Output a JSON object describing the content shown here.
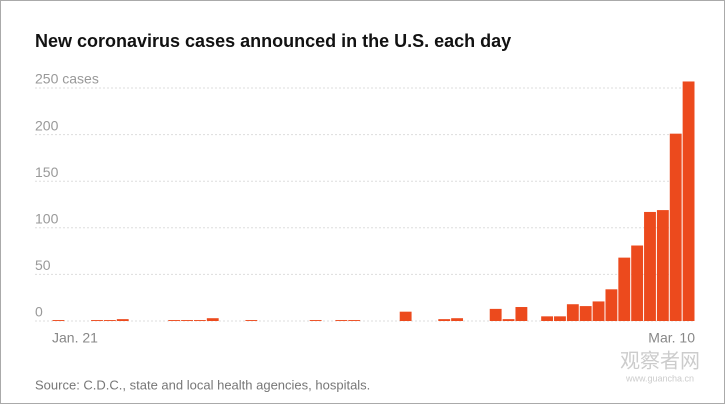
{
  "chart_data": {
    "type": "bar",
    "title": "New coronavirus cases announced in the U.S. each day",
    "source": "Source: C.D.C., state and local health agencies, hospitals.",
    "watermark": "观察者网",
    "watermark_url": "www.guancha.cn",
    "categories": [
      "Jan. 21",
      null,
      null,
      null,
      null,
      null,
      null,
      null,
      null,
      null,
      null,
      null,
      null,
      null,
      null,
      null,
      null,
      null,
      null,
      null,
      null,
      null,
      null,
      null,
      null,
      null,
      null,
      null,
      null,
      null,
      null,
      null,
      null,
      null,
      null,
      null,
      null,
      null,
      null,
      null,
      null,
      null,
      null,
      null,
      null,
      null,
      null,
      null,
      null,
      "Mar. 10"
    ],
    "values": [
      1,
      0,
      0,
      1,
      1,
      2,
      0,
      0,
      0,
      1,
      1,
      1,
      3,
      0,
      0,
      1,
      0,
      0,
      0,
      0,
      1,
      0,
      1,
      1,
      0,
      0,
      0,
      10,
      0,
      0,
      2,
      3,
      0,
      0,
      13,
      2,
      15,
      0,
      5,
      5,
      18,
      16,
      21,
      34,
      68,
      81,
      117,
      119,
      201,
      257
    ],
    "color": "#ec4a1d",
    "ylim": [
      0,
      250
    ],
    "yticks": [
      0,
      50,
      100,
      150,
      200,
      {
        "value": 250,
        "label": "250 cases"
      }
    ],
    "grid": true
  }
}
